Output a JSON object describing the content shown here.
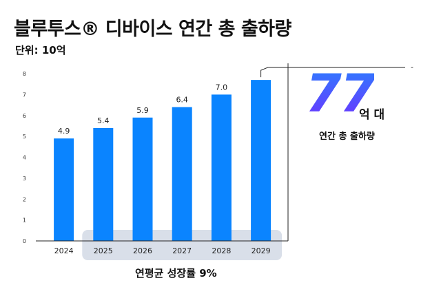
{
  "header": {
    "title": "블루투스® 디바이스 연간 총 출하량",
    "unit": "단위: 10억"
  },
  "callout": {
    "value": "77",
    "unit": "억 대",
    "caption": "연간 총 출하량",
    "dash": "-"
  },
  "footer": {
    "growth_label": "연평균 성장률 9%"
  },
  "colors": {
    "bar": "#0a84ff",
    "highlight": "#d9dfe9",
    "callout_gradient": [
      "#2f7bff",
      "#6a36ff"
    ]
  },
  "chart_data": {
    "type": "bar",
    "categories": [
      "2024",
      "2025",
      "2026",
      "2027",
      "2028",
      "2029"
    ],
    "values": [
      4.9,
      5.4,
      5.9,
      6.4,
      7.0,
      7.7
    ],
    "data_labels": [
      "4.9",
      "5.4",
      "5.9",
      "6.4",
      "7.0",
      ""
    ],
    "title": "블루투스® 디바이스 연간 총 출하량",
    "ylim": [
      0,
      8
    ],
    "yticks": [
      0,
      1,
      2,
      3,
      4,
      5,
      6,
      7,
      8
    ],
    "grid": false,
    "highlighted_categories": [
      "2025",
      "2026",
      "2027",
      "2028",
      "2029"
    ]
  }
}
